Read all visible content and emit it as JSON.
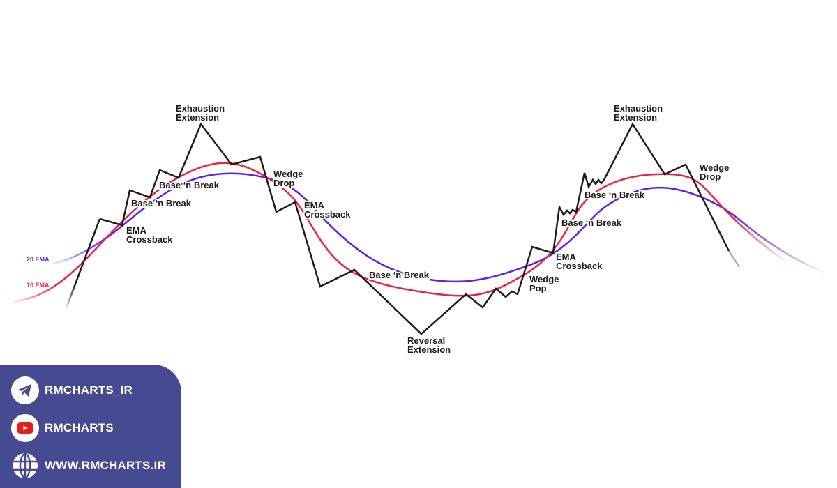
{
  "diagram": {
    "colors": {
      "price": "#1c1c1c",
      "ema10": "#ee2244",
      "ema20": "#5522ee",
      "panel": "#464a91"
    },
    "legend": {
      "ema20": "20 EMA",
      "ema10": "10 EMA"
    },
    "labels": [
      {
        "id": "exhaustion-1",
        "lines": [
          "Exhaustion",
          "Extension"
        ]
      },
      {
        "id": "base-break-1",
        "lines": [
          "Base ‘n Break"
        ]
      },
      {
        "id": "base-break-2",
        "lines": [
          "Base ‘n Break"
        ]
      },
      {
        "id": "ema-crossback-1",
        "lines": [
          "EMA",
          "Crossback"
        ]
      },
      {
        "id": "wedge-drop-1",
        "lines": [
          "Wedge",
          "Drop"
        ]
      },
      {
        "id": "ema-crossback-2",
        "lines": [
          "EMA",
          "Crossback"
        ]
      },
      {
        "id": "base-break-3",
        "lines": [
          "Base ‘n Break"
        ]
      },
      {
        "id": "reversal-extension",
        "lines": [
          "Reversal",
          "Extension"
        ]
      },
      {
        "id": "wedge-pop",
        "lines": [
          "Wedge",
          "Pop"
        ]
      },
      {
        "id": "ema-crossback-3",
        "lines": [
          "EMA",
          "Crossback"
        ]
      },
      {
        "id": "base-break-4",
        "lines": [
          "Base ‘n Break"
        ]
      },
      {
        "id": "base-break-5",
        "lines": [
          "Base ‘n Break"
        ]
      },
      {
        "id": "exhaustion-2",
        "lines": [
          "Exhaustion",
          "Extension"
        ]
      },
      {
        "id": "wedge-drop-2",
        "lines": [
          "Wedge",
          "Drop"
        ]
      }
    ]
  },
  "footer": {
    "items": [
      {
        "icon": "telegram-icon",
        "text": "RMCHARTS_IR"
      },
      {
        "icon": "youtube-icon",
        "text": "RMCHARTS"
      },
      {
        "icon": "globe-icon",
        "text": "WWW.RMCHARTS.IR"
      }
    ]
  }
}
